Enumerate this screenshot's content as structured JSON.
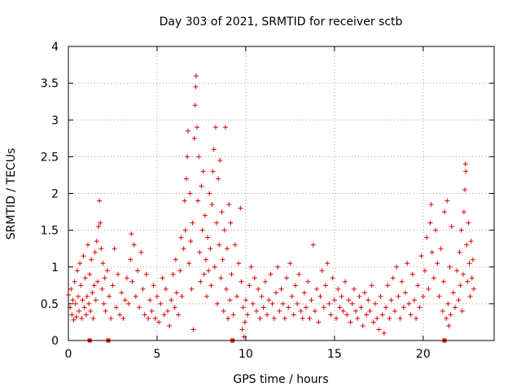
{
  "chart_data": {
    "type": "scatter",
    "title": "Day 303 of 2021, SRMTID for receiver sctb",
    "xlabel": "GPS time / hours",
    "ylabel": "SRMTID / TECUs",
    "xlim": [
      0,
      24
    ],
    "ylim": [
      0,
      4
    ],
    "x_ticks": [
      {
        "value": 0,
        "label": "0"
      },
      {
        "value": 5,
        "label": "5"
      },
      {
        "value": 10,
        "label": "10"
      },
      {
        "value": 15,
        "label": "15"
      },
      {
        "value": 20,
        "label": "20"
      }
    ],
    "y_ticks": [
      {
        "value": 0,
        "label": "0"
      },
      {
        "value": 0.5,
        "label": "0.5"
      },
      {
        "value": 1,
        "label": "1"
      },
      {
        "value": 1.5,
        "label": "1.5"
      },
      {
        "value": 2,
        "label": "2"
      },
      {
        "value": 2.5,
        "label": "2.5"
      },
      {
        "value": 3,
        "label": "3"
      },
      {
        "value": 3.5,
        "label": "3.5"
      },
      {
        "value": 4,
        "label": "4"
      }
    ],
    "grid": true,
    "marker": "plus",
    "color": "#e60000",
    "series": [
      {
        "name": "SRMTID",
        "points": [
          [
            0.0,
            0.62
          ],
          [
            0.1,
            0.45
          ],
          [
            0.15,
            0.7
          ],
          [
            0.2,
            0.35
          ],
          [
            0.25,
            0.55
          ],
          [
            0.3,
            0.28
          ],
          [
            0.35,
            0.8
          ],
          [
            0.4,
            0.5
          ],
          [
            0.45,
            0.32
          ],
          [
            0.5,
            0.95
          ],
          [
            0.55,
            0.6
          ],
          [
            0.6,
            0.4
          ],
          [
            0.65,
            1.05
          ],
          [
            0.7,
            0.75
          ],
          [
            0.75,
            0.3
          ],
          [
            0.8,
            0.55
          ],
          [
            0.85,
            1.15
          ],
          [
            0.9,
            0.45
          ],
          [
            0.95,
            0.85
          ],
          [
            1.0,
            0.35
          ],
          [
            1.05,
            0.6
          ],
          [
            1.1,
            1.3
          ],
          [
            1.15,
            0.5
          ],
          [
            1.2,
            0.9
          ],
          [
            1.25,
            0.4
          ],
          [
            1.3,
            1.1
          ],
          [
            1.35,
            0.65
          ],
          [
            1.4,
            0.3
          ],
          [
            1.45,
            0.75
          ],
          [
            1.5,
            1.2
          ],
          [
            1.55,
            0.55
          ],
          [
            1.6,
            1.35
          ],
          [
            1.65,
            0.8
          ],
          [
            1.7,
            1.55
          ],
          [
            1.75,
            1.9
          ],
          [
            1.8,
            1.6
          ],
          [
            1.85,
            1.25
          ],
          [
            1.9,
            0.7
          ],
          [
            1.95,
            1.05
          ],
          [
            2.0,
            0.5
          ],
          [
            2.05,
            0.85
          ],
          [
            2.1,
            0.4
          ],
          [
            2.2,
            0.95
          ],
          [
            2.3,
            0.6
          ],
          [
            2.4,
            0.3
          ],
          [
            2.5,
            0.75
          ],
          [
            2.6,
            1.25
          ],
          [
            2.7,
            0.45
          ],
          [
            2.8,
            0.9
          ],
          [
            2.9,
            0.35
          ],
          [
            3.0,
            0.65
          ],
          [
            3.1,
            0.3
          ],
          [
            3.2,
            0.55
          ],
          [
            3.3,
            0.85
          ],
          [
            3.4,
            0.5
          ],
          [
            3.5,
            1.1
          ],
          [
            3.55,
            1.45
          ],
          [
            3.6,
            0.8
          ],
          [
            3.7,
            1.3
          ],
          [
            3.8,
            0.6
          ],
          [
            3.9,
            0.95
          ],
          [
            4.0,
            0.45
          ],
          [
            4.1,
            1.2
          ],
          [
            4.2,
            0.7
          ],
          [
            4.3,
            0.35
          ],
          [
            4.4,
            0.9
          ],
          [
            4.5,
            0.3
          ],
          [
            4.6,
            0.55
          ],
          [
            4.7,
            0.4
          ],
          [
            4.8,
            0.75
          ],
          [
            4.9,
            0.3
          ],
          [
            5.0,
            0.6
          ],
          [
            5.1,
            0.25
          ],
          [
            5.2,
            0.5
          ],
          [
            5.3,
            0.85
          ],
          [
            5.4,
            0.35
          ],
          [
            5.5,
            0.7
          ],
          [
            5.6,
            0.4
          ],
          [
            5.7,
            0.2
          ],
          [
            5.8,
            0.55
          ],
          [
            5.9,
            0.9
          ],
          [
            6.0,
            0.45
          ],
          [
            6.05,
            1.1
          ],
          [
            6.1,
            0.65
          ],
          [
            6.2,
            0.35
          ],
          [
            6.3,
            0.95
          ],
          [
            6.35,
            1.4
          ],
          [
            6.4,
            0.6
          ],
          [
            6.5,
            1.25
          ],
          [
            6.55,
            1.9
          ],
          [
            6.6,
            1.5
          ],
          [
            6.65,
            2.2
          ],
          [
            6.7,
            2.5
          ],
          [
            6.75,
            2.85
          ],
          [
            6.8,
            1.05
          ],
          [
            6.85,
            2.0
          ],
          [
            6.9,
            1.35
          ],
          [
            6.95,
            0.7
          ],
          [
            7.0,
            1.6
          ],
          [
            7.05,
            0.15
          ],
          [
            7.1,
            2.75
          ],
          [
            7.15,
            3.2
          ],
          [
            7.18,
            3.45
          ],
          [
            7.2,
            3.6
          ],
          [
            7.25,
            2.9
          ],
          [
            7.3,
            1.9
          ],
          [
            7.35,
            2.5
          ],
          [
            7.4,
            1.2
          ],
          [
            7.45,
            0.8
          ],
          [
            7.5,
            2.1
          ],
          [
            7.55,
            1.5
          ],
          [
            7.6,
            2.3
          ],
          [
            7.65,
            0.9
          ],
          [
            7.7,
            1.7
          ],
          [
            7.75,
            1.1
          ],
          [
            7.8,
            0.6
          ],
          [
            7.85,
            1.4
          ],
          [
            7.9,
            0.95
          ],
          [
            7.95,
            2.0
          ],
          [
            8.0,
            1.25
          ],
          [
            8.05,
            0.75
          ],
          [
            8.1,
            1.85
          ],
          [
            8.15,
            2.3
          ],
          [
            8.2,
            2.6
          ],
          [
            8.25,
            1.0
          ],
          [
            8.3,
            2.9
          ],
          [
            8.35,
            1.6
          ],
          [
            8.4,
            0.5
          ],
          [
            8.45,
            2.2
          ],
          [
            8.5,
            1.3
          ],
          [
            8.55,
            2.45
          ],
          [
            8.6,
            0.85
          ],
          [
            8.65,
            1.75
          ],
          [
            8.7,
            1.1
          ],
          [
            8.75,
            0.4
          ],
          [
            8.8,
            1.5
          ],
          [
            8.85,
            2.9
          ],
          [
            8.9,
            0.7
          ],
          [
            8.95,
            1.25
          ],
          [
            9.0,
            0.3
          ],
          [
            9.05,
            1.85
          ],
          [
            9.1,
            0.55
          ],
          [
            9.15,
            1.6
          ],
          [
            9.2,
            0.9
          ],
          [
            9.3,
            0.35
          ],
          [
            9.4,
            1.3
          ],
          [
            9.5,
            0.6
          ],
          [
            9.6,
            1.05
          ],
          [
            9.7,
            1.8
          ],
          [
            9.75,
            0.8
          ],
          [
            9.8,
            0.15
          ],
          [
            9.85,
            0.45
          ],
          [
            9.9,
            0.05
          ],
          [
            9.95,
            0.25
          ],
          [
            10.0,
            0.55
          ],
          [
            10.1,
            0.35
          ],
          [
            10.2,
            0.75
          ],
          [
            10.3,
            1.0
          ],
          [
            10.4,
            0.5
          ],
          [
            10.5,
            0.85
          ],
          [
            10.6,
            0.4
          ],
          [
            10.7,
            0.7
          ],
          [
            10.8,
            0.3
          ],
          [
            10.9,
            0.6
          ],
          [
            11.0,
            0.45
          ],
          [
            11.1,
            0.8
          ],
          [
            11.2,
            0.35
          ],
          [
            11.3,
            0.55
          ],
          [
            11.4,
            0.9
          ],
          [
            11.5,
            0.5
          ],
          [
            11.6,
            0.3
          ],
          [
            11.7,
            0.65
          ],
          [
            11.8,
            1.0
          ],
          [
            11.9,
            0.4
          ],
          [
            12.0,
            0.7
          ],
          [
            12.1,
            0.5
          ],
          [
            12.2,
            0.3
          ],
          [
            12.3,
            0.85
          ],
          [
            12.4,
            0.45
          ],
          [
            12.5,
            1.05
          ],
          [
            12.6,
            0.6
          ],
          [
            12.7,
            0.35
          ],
          [
            12.8,
            0.75
          ],
          [
            12.9,
            0.5
          ],
          [
            13.0,
            0.9
          ],
          [
            13.1,
            0.4
          ],
          [
            13.2,
            0.3
          ],
          [
            13.3,
            0.65
          ],
          [
            13.4,
            0.45
          ],
          [
            13.5,
            0.8
          ],
          [
            13.6,
            0.3
          ],
          [
            13.7,
            0.55
          ],
          [
            13.8,
            1.3
          ],
          [
            13.9,
            0.4
          ],
          [
            14.0,
            0.7
          ],
          [
            14.1,
            0.25
          ],
          [
            14.2,
            0.6
          ],
          [
            14.3,
            0.95
          ],
          [
            14.4,
            0.45
          ],
          [
            14.5,
            0.75
          ],
          [
            14.6,
            1.05
          ],
          [
            14.7,
            0.5
          ],
          [
            14.8,
            0.35
          ],
          [
            14.9,
            0.85
          ],
          [
            15.0,
            0.55
          ],
          [
            15.1,
            0.3
          ],
          [
            15.2,
            0.7
          ],
          [
            15.3,
            0.45
          ],
          [
            15.4,
            0.6
          ],
          [
            15.5,
            0.4
          ],
          [
            15.6,
            0.8
          ],
          [
            15.7,
            0.35
          ],
          [
            15.8,
            0.55
          ],
          [
            15.9,
            0.25
          ],
          [
            16.0,
            0.5
          ],
          [
            16.1,
            0.7
          ],
          [
            16.2,
            0.4
          ],
          [
            16.3,
            0.3
          ],
          [
            16.4,
            0.6
          ],
          [
            16.5,
            0.45
          ],
          [
            16.6,
            0.2
          ],
          [
            16.7,
            0.65
          ],
          [
            16.8,
            0.35
          ],
          [
            16.9,
            0.55
          ],
          [
            17.0,
            0.4
          ],
          [
            17.1,
            0.75
          ],
          [
            17.2,
            0.25
          ],
          [
            17.3,
            0.5
          ],
          [
            17.4,
            0.3
          ],
          [
            17.5,
            0.15
          ],
          [
            17.6,
            0.6
          ],
          [
            17.7,
            0.35
          ],
          [
            17.8,
            0.1
          ],
          [
            17.9,
            0.45
          ],
          [
            18.0,
            0.75
          ],
          [
            18.1,
            0.3
          ],
          [
            18.2,
            0.55
          ],
          [
            18.3,
            0.85
          ],
          [
            18.4,
            0.4
          ],
          [
            18.5,
            1.0
          ],
          [
            18.6,
            0.6
          ],
          [
            18.7,
            0.3
          ],
          [
            18.8,
            0.8
          ],
          [
            18.9,
            0.45
          ],
          [
            19.0,
            0.65
          ],
          [
            19.1,
            1.05
          ],
          [
            19.2,
            0.5
          ],
          [
            19.3,
            0.35
          ],
          [
            19.4,
            0.9
          ],
          [
            19.5,
            0.55
          ],
          [
            19.6,
            0.3
          ],
          [
            19.7,
            0.75
          ],
          [
            19.8,
            0.45
          ],
          [
            19.9,
            1.15
          ],
          [
            20.0,
            0.6
          ],
          [
            20.1,
            0.95
          ],
          [
            20.2,
            1.4
          ],
          [
            20.3,
            0.7
          ],
          [
            20.4,
            1.6
          ],
          [
            20.45,
            1.85
          ],
          [
            20.5,
            1.2
          ],
          [
            20.6,
            0.85
          ],
          [
            20.7,
            1.5
          ],
          [
            20.8,
            1.05
          ],
          [
            20.9,
            0.6
          ],
          [
            21.0,
            1.25
          ],
          [
            21.1,
            0.4
          ],
          [
            21.15,
            0.8
          ],
          [
            21.2,
            1.75
          ],
          [
            21.3,
            0.3
          ],
          [
            21.35,
            1.9
          ],
          [
            21.4,
            0.5
          ],
          [
            21.45,
            0.2
          ],
          [
            21.5,
            1.0
          ],
          [
            21.55,
            0.35
          ],
          [
            21.6,
            1.55
          ],
          [
            21.7,
            0.65
          ],
          [
            21.8,
            0.45
          ],
          [
            21.9,
            0.95
          ],
          [
            22.0,
            0.55
          ],
          [
            22.05,
            1.2
          ],
          [
            22.1,
            0.75
          ],
          [
            22.15,
            1.5
          ],
          [
            22.2,
            0.4
          ],
          [
            22.25,
            0.9
          ],
          [
            22.3,
            1.75
          ],
          [
            22.35,
            2.05
          ],
          [
            22.38,
            2.4
          ],
          [
            22.4,
            2.3
          ],
          [
            22.45,
            1.3
          ],
          [
            22.5,
            0.8
          ],
          [
            22.55,
            1.6
          ],
          [
            22.6,
            1.05
          ],
          [
            22.65,
            0.6
          ],
          [
            22.7,
            1.35
          ],
          [
            22.75,
            0.85
          ],
          [
            22.8,
            1.1
          ],
          [
            22.85,
            0.7
          ]
        ]
      }
    ],
    "markers_on_axis": [
      {
        "x": 1.2
      },
      {
        "x": 2.25
      },
      {
        "x": 9.25
      },
      {
        "x": 21.2
      }
    ]
  }
}
